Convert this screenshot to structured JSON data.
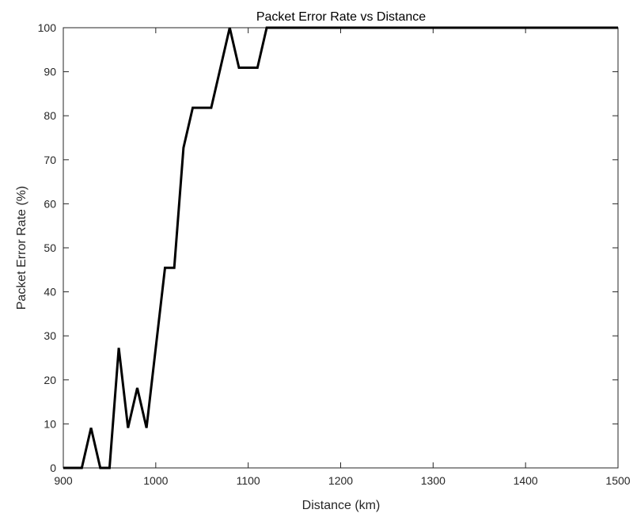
{
  "chart_data": {
    "type": "line",
    "title": "Packet Error Rate vs Distance",
    "xlabel": "Distance (km)",
    "ylabel": "Packet Error Rate (%)",
    "xlim": [
      900,
      1500
    ],
    "ylim": [
      0,
      100
    ],
    "xticks": [
      900,
      1000,
      1100,
      1200,
      1300,
      1400,
      1500
    ],
    "yticks": [
      0,
      10,
      20,
      30,
      40,
      50,
      60,
      70,
      80,
      90,
      100
    ],
    "grid": false,
    "series": [
      {
        "color": "#000000",
        "x": [
          900,
          910,
          920,
          930,
          940,
          950,
          960,
          970,
          980,
          990,
          1000,
          1010,
          1020,
          1030,
          1040,
          1050,
          1060,
          1070,
          1080,
          1090,
          1100,
          1110,
          1120,
          1130,
          1140,
          1150,
          1160,
          1170,
          1180,
          1190,
          1200,
          1210,
          1220,
          1230,
          1240,
          1250,
          1260,
          1270,
          1280,
          1290,
          1300,
          1310,
          1320,
          1330,
          1340,
          1350,
          1360,
          1370,
          1380,
          1390,
          1400,
          1410,
          1420,
          1430,
          1440,
          1450,
          1460,
          1470,
          1480,
          1490,
          1500
        ],
        "y": [
          0,
          0,
          0,
          9.09,
          0,
          0,
          27.27,
          9.09,
          18.18,
          9.09,
          27.27,
          45.45,
          45.45,
          72.73,
          81.82,
          81.82,
          81.82,
          90.91,
          100,
          90.91,
          90.91,
          90.91,
          100,
          100,
          100,
          100,
          100,
          100,
          100,
          100,
          100,
          100,
          100,
          100,
          100,
          100,
          100,
          100,
          100,
          100,
          100,
          100,
          100,
          100,
          100,
          100,
          100,
          100,
          100,
          100,
          100,
          100,
          100,
          100,
          100,
          100,
          100,
          100,
          100,
          100,
          100
        ]
      }
    ]
  }
}
